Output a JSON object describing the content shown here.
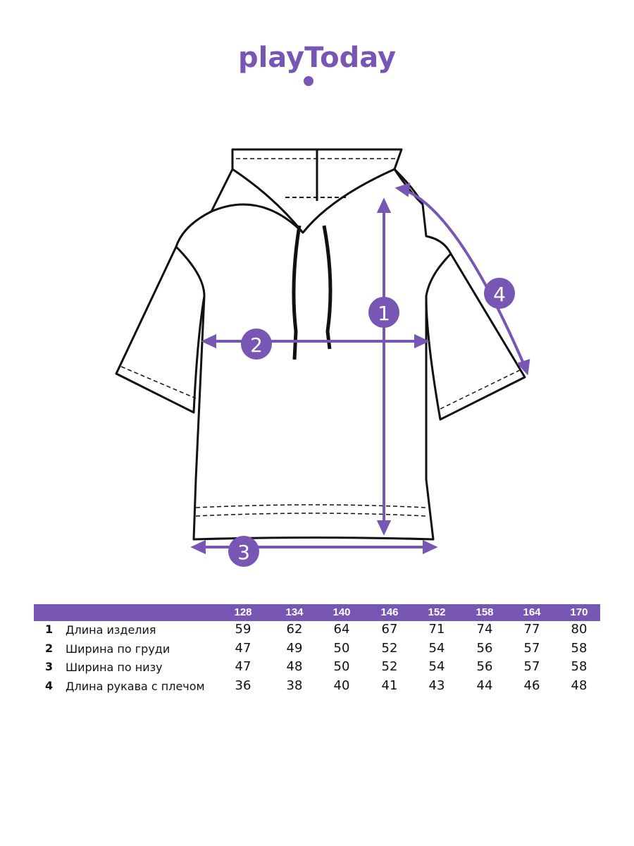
{
  "brand": {
    "logo_text": "playToday",
    "color": "#7856B4"
  },
  "diagram": {
    "markers": [
      "1",
      "2",
      "3",
      "4"
    ]
  },
  "table": {
    "sizes": [
      "128",
      "134",
      "140",
      "146",
      "152",
      "158",
      "164",
      "170"
    ],
    "rows": [
      {
        "num": "1",
        "label": "Длина изделия",
        "values": [
          "59",
          "62",
          "64",
          "67",
          "71",
          "74",
          "77",
          "80"
        ]
      },
      {
        "num": "2",
        "label": "Ширина по груди",
        "values": [
          "47",
          "49",
          "50",
          "52",
          "54",
          "56",
          "57",
          "58"
        ]
      },
      {
        "num": "3",
        "label": "Ширина по низу",
        "values": [
          "47",
          "48",
          "50",
          "52",
          "54",
          "56",
          "57",
          "58"
        ]
      },
      {
        "num": "4",
        "label": "Длина рукава с плечом",
        "values": [
          "36",
          "38",
          "40",
          "41",
          "43",
          "44",
          "46",
          "48"
        ]
      }
    ]
  }
}
